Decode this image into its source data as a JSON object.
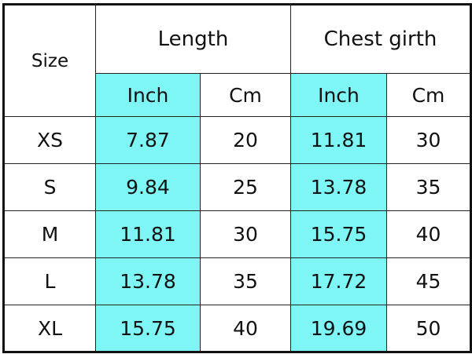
{
  "header": {
    "size": "Size",
    "groups": [
      "Length",
      "Chest girth"
    ],
    "units": [
      "Inch",
      "Cm",
      "Inch",
      "Cm"
    ]
  },
  "rows": [
    {
      "size": "XS",
      "values": [
        "7.87",
        "20",
        "11.81",
        "30"
      ]
    },
    {
      "size": "S",
      "values": [
        "9.84",
        "25",
        "13.78",
        "35"
      ]
    },
    {
      "size": "M",
      "values": [
        "11.81",
        "30",
        "15.75",
        "40"
      ]
    },
    {
      "size": "L",
      "values": [
        "13.78",
        "35",
        "17.72",
        "45"
      ]
    },
    {
      "size": "XL",
      "values": [
        "15.75",
        "40",
        "19.69",
        "50"
      ]
    }
  ],
  "colors": {
    "inch_column_fill": "#7ff6f6",
    "border": "#111111"
  }
}
